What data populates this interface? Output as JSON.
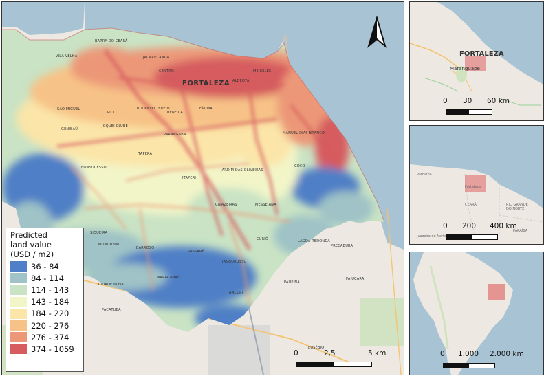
{
  "main_map": {
    "city": "FORTALEZA",
    "neighborhoods": [
      {
        "label": "BARRA DO CEARÁ"
      },
      {
        "label": "VILA VELHA"
      },
      {
        "label": "JACARECANGA"
      },
      {
        "label": "CENTRO"
      },
      {
        "label": "MEIRELES"
      },
      {
        "label": "ALDEOTA"
      },
      {
        "label": "SÃO MIGUEL"
      },
      {
        "label": "PICI"
      },
      {
        "label": "RODOLFO TEÓFILO"
      },
      {
        "label": "BENFICA"
      },
      {
        "label": "FÁTIMA"
      },
      {
        "label": "GENIBAÚ"
      },
      {
        "label": "JOQUEI CLUBE"
      },
      {
        "label": "PARANGABA"
      },
      {
        "label": "MANUEL DIAS BRANCO"
      },
      {
        "label": "BONSUCESSO"
      },
      {
        "label": "TAPERA"
      },
      {
        "label": "JARDIM DAS OLIVEIRAS"
      },
      {
        "label": "COCÓ"
      },
      {
        "label": "CAJAZEIRAS"
      },
      {
        "label": "MESSEJANA"
      },
      {
        "label": "CURIÓ"
      },
      {
        "label": "SIQUEIRA"
      },
      {
        "label": "MONDUBIM"
      },
      {
        "label": "PASSARÉ"
      },
      {
        "label": "BARROSO"
      },
      {
        "label": "JANGURUSSU"
      },
      {
        "label": "PAUPINA"
      },
      {
        "label": "LAGOA REDONDA"
      },
      {
        "label": "CIDADE NOVA"
      },
      {
        "label": "MARACANAÚ"
      },
      {
        "label": "PACATUBA"
      },
      {
        "label": "EUSÉBIO"
      },
      {
        "label": "PRECABURA"
      },
      {
        "label": "PAJUÇARA"
      },
      {
        "label": "ANCURI"
      },
      {
        "label": "ITAPERI"
      }
    ]
  },
  "legend": {
    "title": "Predicted land value (USD / m2)",
    "title_lines": [
      "Predicted",
      "land value",
      "(USD / m2)"
    ],
    "classes": [
      {
        "label": "36 - 84",
        "color": "#4f7fc6"
      },
      {
        "label": "84 - 114",
        "color": "#9fc3c6"
      },
      {
        "label": "114 - 143",
        "color": "#c9e3c4"
      },
      {
        "label": "143 - 184",
        "color": "#f2f5c8"
      },
      {
        "label": "184 - 220",
        "color": "#fbe5a8"
      },
      {
        "label": "220 - 276",
        "color": "#f7c287"
      },
      {
        "label": "276 - 374",
        "color": "#ec9878"
      },
      {
        "label": "374 - 1059",
        "color": "#d65c5f"
      }
    ]
  },
  "main_scalebar": {
    "ticks": [
      "0",
      "2,5",
      "5 km"
    ]
  },
  "insets": [
    {
      "labels": [
        "FORTALEZA",
        "Maranguape"
      ],
      "scalebar": {
        "ticks": [
          "0",
          "30",
          "60 km"
        ]
      }
    },
    {
      "labels": [
        "Parnaíba",
        "Fortaleza",
        "CEARÁ",
        "RIO GRANDE DO NORTE",
        "PARAÍBA",
        "Juazeiro do Norte"
      ],
      "scalebar": {
        "ticks": [
          "0",
          "200",
          "400 km"
        ]
      }
    },
    {
      "labels": [],
      "scalebar": {
        "ticks": [
          "0",
          "1.000",
          "2.000 km"
        ]
      }
    }
  ],
  "colors": {
    "ocean": "#a8c3d4",
    "land": "#ede9e2",
    "frame": "#333333"
  },
  "icons": {
    "north_arrow": "north-arrow-icon"
  }
}
